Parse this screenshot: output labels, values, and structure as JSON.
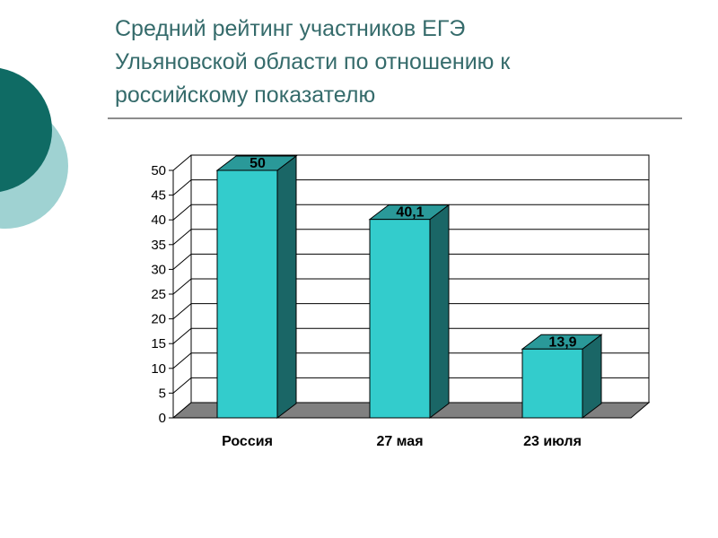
{
  "slide": {
    "title_lines": [
      "Средний рейтинг участников ЕГЭ",
      "Ульяновской области по отношению к",
      "российскому показателю"
    ]
  },
  "colors": {
    "title": "#356b6b",
    "deco_dark": "#0f6b64",
    "deco_light": "#9fd2d2",
    "bar_front": "#33cccc",
    "bar_side": "#1a6666",
    "bar_top": "#2a9999",
    "floor": "#808080"
  },
  "chart_data": {
    "type": "bar",
    "categories": [
      "Россия",
      "27 мая",
      "23 июля"
    ],
    "values": [
      50,
      40.1,
      13.9
    ],
    "value_labels": [
      "50",
      "40,1",
      "13,9"
    ],
    "ylim": [
      0,
      50
    ],
    "yticks": [
      0,
      5,
      10,
      15,
      20,
      25,
      30,
      35,
      40,
      45,
      50
    ],
    "grid": true,
    "legend": "none",
    "style": "3d"
  }
}
